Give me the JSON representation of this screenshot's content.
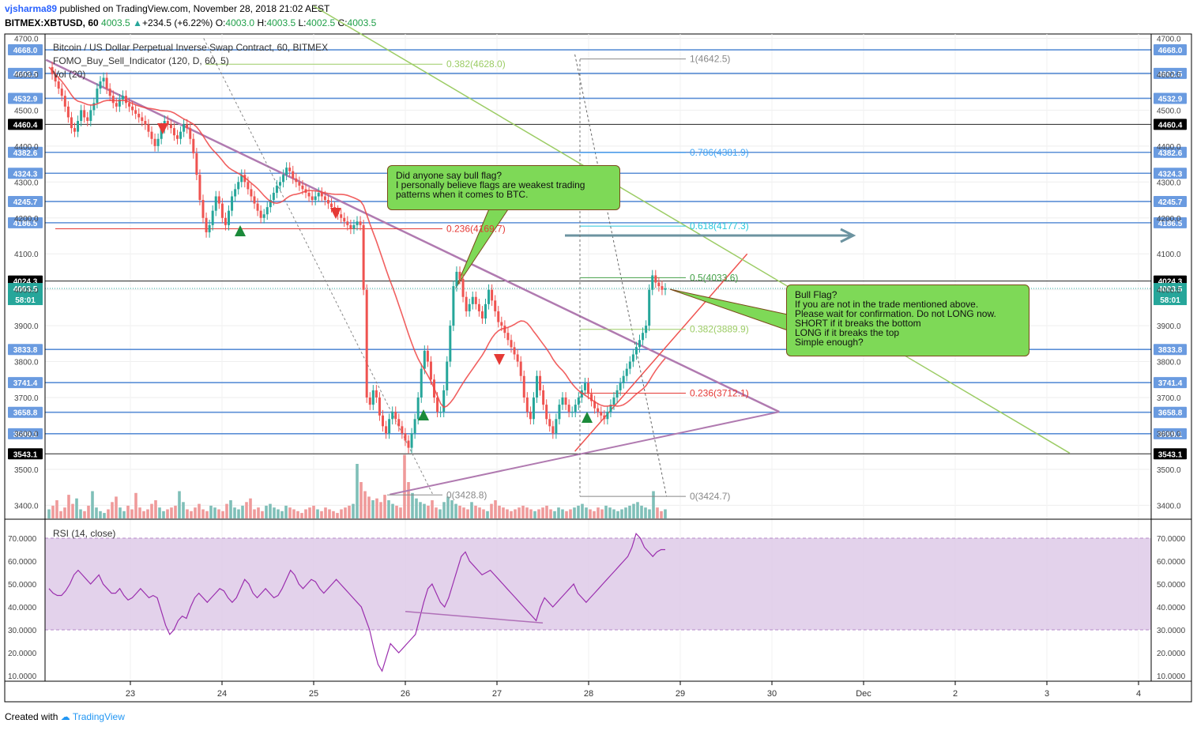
{
  "header": {
    "user": "vjsharma89",
    "published": " published on TradingView.com, November 28, 2018 21:02 AEST",
    "symbol": "BITMEX:XBTUSD, 60",
    "last": "4003.5",
    "change_arrow": "▲",
    "change": "+234.5 (+6.22%)",
    "o_label": "O:",
    "o_val": "4003.0",
    "h_label": "H:",
    "h_val": "4003.5",
    "l_label": "L:",
    "l_val": "4002.5",
    "c_label": "C:",
    "c_val": "4003.5"
  },
  "legend": {
    "title": "Bitcoin / US Dollar Perpetual Inverse Swap Contract, 60, BITMEX",
    "indicator": "FOMO_Buy_Sell_Indicator (120, D, 60, 5)",
    "volume": "Vol (20)",
    "rsi": "RSI (14, close)"
  },
  "footer": {
    "created_with": "Created with",
    "brand": "TradingView"
  },
  "annotations": {
    "bubble1": [
      "Did anyone say bull flag?",
      "I personally believe flags are weakest trading",
      "patterns when it comes to BTC."
    ],
    "bubble2": [
      "Bull Flag?",
      "If you are not in the trade mentioned above.",
      "Please wait for confirmation. Do not LONG now.",
      "SHORT if it breaks the bottom",
      "LONG if it breaks the top",
      "Simple enough?"
    ]
  },
  "colors": {
    "level": "#5b8fd6",
    "up": "#26a69a",
    "down": "#ef5350",
    "ema": "#ef4444",
    "green": "#4ade80",
    "triangle": "#b07ab0",
    "rsi": "#9b2fae",
    "rsi_band": "#dcc7e6",
    "bubble": "#7ed957"
  },
  "chart_data": {
    "type": "candlestick",
    "y_axis_ticks": [
      "4700.0",
      "4600.0",
      "4500.0",
      "4400.0",
      "4300.0",
      "4200.0",
      "4100.0",
      "4000.0",
      "3900.0",
      "3800.0",
      "3700.0",
      "3600.0",
      "3500.0",
      "3400.0"
    ],
    "x_axis_ticks": [
      "23",
      "24",
      "25",
      "26",
      "27",
      "28",
      "29",
      "30",
      "Dec",
      "2",
      "3",
      "4"
    ],
    "horizontal_levels": [
      {
        "label": "4668.0",
        "value": 4668.0,
        "style": "blue"
      },
      {
        "label": "4602.5",
        "value": 4602.5,
        "style": "blue"
      },
      {
        "label": "4532.9",
        "value": 4532.9,
        "style": "blue"
      },
      {
        "label": "4460.4",
        "value": 4460.4,
        "style": "black"
      },
      {
        "label": "4382.6",
        "value": 4382.6,
        "style": "blue"
      },
      {
        "label": "4324.3",
        "value": 4324.3,
        "style": "blue"
      },
      {
        "label": "4245.7",
        "value": 4245.7,
        "style": "blue"
      },
      {
        "label": "4186.5",
        "value": 4186.5,
        "style": "blue"
      },
      {
        "label": "4024.3",
        "value": 4024.3,
        "style": "black"
      },
      {
        "label": "3833.8",
        "value": 3833.8,
        "style": "blue"
      },
      {
        "label": "3741.4",
        "value": 3741.4,
        "style": "blue"
      },
      {
        "label": "3658.8",
        "value": 3658.8,
        "style": "blue"
      },
      {
        "label": "3599.1",
        "value": 3599.1,
        "style": "blue"
      },
      {
        "label": "3543.1",
        "value": 3543.1,
        "style": "black"
      }
    ],
    "current_price": {
      "label": "4003.5",
      "value": 4003.5,
      "countdown": "58:01"
    },
    "fib_left": [
      {
        "label": "0.382(4628.0)",
        "value": 4628.0,
        "color": "#9ccc65"
      },
      {
        "label": "0.236(4169.7)",
        "value": 4169.7,
        "color": "#e53935"
      },
      {
        "label": "0(3428.8)",
        "value": 3428.8,
        "color": "#888888"
      }
    ],
    "fib_right": [
      {
        "label": "1(4642.5)",
        "value": 4642.5,
        "color": "#888888"
      },
      {
        "label": "0.786(4381.9)",
        "value": 4381.9,
        "color": "#42a5f5"
      },
      {
        "label": "0.618(4177.3)",
        "value": 4177.3,
        "color": "#26c6da"
      },
      {
        "label": "0.5(4033.6)",
        "value": 4033.6,
        "color": "#43a047"
      },
      {
        "label": "0.382(3889.9)",
        "value": 3889.9,
        "color": "#9ccc65"
      },
      {
        "label": "0.236(3712.1)",
        "value": 3712.1,
        "color": "#e53935"
      },
      {
        "label": "0(3424.7)",
        "value": 3424.7,
        "color": "#888888"
      }
    ],
    "price_series_hourly": [
      4620,
      4600,
      4580,
      4560,
      4540,
      4510,
      4480,
      4450,
      4440,
      4470,
      4500,
      4480,
      4470,
      4500,
      4520,
      4560,
      4580,
      4590,
      4560,
      4540,
      4520,
      4510,
      4530,
      4540,
      4520,
      4510,
      4500,
      4490,
      4480,
      4470,
      4460,
      4440,
      4420,
      4400,
      4420,
      4450,
      4470,
      4460,
      4450,
      4430,
      4420,
      4440,
      4460,
      4450,
      4420,
      4380,
      4320,
      4250,
      4200,
      4160,
      4180,
      4220,
      4260,
      4240,
      4200,
      4180,
      4220,
      4260,
      4280,
      4300,
      4320,
      4300,
      4280,
      4260,
      4240,
      4220,
      4200,
      4210,
      4230,
      4250,
      4270,
      4290,
      4300,
      4320,
      4340,
      4330,
      4310,
      4300,
      4290,
      4280,
      4270,
      4260,
      4250,
      4260,
      4270,
      4260,
      4250,
      4240,
      4230,
      4220,
      4210,
      4200,
      4190,
      4180,
      4170,
      4180,
      4190,
      4180,
      4000,
      3700,
      3680,
      3720,
      3700,
      3650,
      3620,
      3600,
      3640,
      3660,
      3640,
      3620,
      3600,
      3580,
      3560,
      3600,
      3640,
      3700,
      3780,
      3830,
      3800,
      3750,
      3700,
      3660,
      3660,
      3720,
      3800,
      3900,
      4010,
      4050,
      4030,
      3980,
      3940,
      3960,
      3980,
      3960,
      3940,
      3920,
      3960,
      4000,
      3970,
      3940,
      3910,
      3900,
      3880,
      3860,
      3840,
      3820,
      3800,
      3760,
      3700,
      3660,
      3640,
      3700,
      3760,
      3720,
      3680,
      3640,
      3620,
      3600,
      3640,
      3680,
      3700,
      3680,
      3660,
      3660,
      3680,
      3700,
      3720,
      3740,
      3710,
      3690,
      3670,
      3660,
      3650,
      3640,
      3660,
      3680,
      3700,
      3720,
      3740,
      3760,
      3780,
      3800,
      3820,
      3840,
      3860,
      3880,
      3900,
      4000,
      4040,
      4020,
      4010,
      4000,
      4003.5
    ],
    "rsi": {
      "ticks": [
        "70.0000",
        "60.0000",
        "50.0000",
        "40.0000",
        "30.0000",
        "20.0000",
        "10.0000"
      ],
      "band": [
        30,
        70
      ],
      "series_hourly": [
        48,
        46,
        45,
        45,
        47,
        50,
        54,
        56,
        54,
        52,
        50,
        52,
        54,
        50,
        48,
        46,
        46,
        48,
        45,
        43,
        44,
        46,
        48,
        46,
        44,
        45,
        44,
        38,
        32,
        28,
        30,
        34,
        36,
        35,
        40,
        44,
        46,
        44,
        42,
        44,
        46,
        48,
        47,
        44,
        42,
        44,
        48,
        52,
        50,
        46,
        44,
        46,
        48,
        46,
        44,
        45,
        48,
        52,
        56,
        54,
        50,
        48,
        50,
        52,
        51,
        48,
        46,
        48,
        50,
        52,
        50,
        48,
        46,
        44,
        42,
        40,
        35,
        30,
        22,
        15,
        12,
        18,
        24,
        22,
        20,
        22,
        24,
        26,
        28,
        35,
        42,
        48,
        50,
        46,
        42,
        40,
        44,
        50,
        56,
        62,
        64,
        60,
        58,
        56,
        54,
        55,
        56,
        54,
        52,
        50,
        48,
        46,
        44,
        42,
        40,
        38,
        36,
        34,
        40,
        44,
        42,
        40,
        42,
        44,
        46,
        48,
        50,
        46,
        44,
        42,
        44,
        46,
        48,
        50,
        52,
        54,
        56,
        58,
        60,
        62,
        66,
        72,
        70,
        66,
        64,
        62,
        64,
        65,
        65
      ],
      "divergence_line": {
        "from": [
          26.0,
          38
        ],
        "to": [
          27.5,
          33
        ]
      }
    },
    "volume_hourly": [
      10,
      14,
      20,
      8,
      12,
      26,
      16,
      22,
      10,
      8,
      14,
      30,
      12,
      8,
      6,
      10,
      18,
      24,
      12,
      8,
      14,
      10,
      28,
      12,
      8,
      10,
      16,
      20,
      12,
      8,
      10,
      12,
      14,
      30,
      18,
      10,
      8,
      12,
      16,
      10,
      8,
      14,
      12,
      10,
      8,
      16,
      20,
      12,
      10,
      14,
      18,
      22,
      10,
      12,
      8,
      14,
      16,
      12,
      10,
      8,
      14,
      12,
      10,
      8,
      6,
      10,
      12,
      14,
      10,
      8,
      12,
      10,
      8,
      6,
      10,
      12,
      14,
      16,
      60,
      40,
      30,
      24,
      20,
      22,
      18,
      26,
      20,
      16,
      14,
      12,
      70,
      40,
      28,
      22,
      18,
      16,
      14,
      20,
      12,
      10,
      18,
      24,
      20,
      16,
      14,
      12,
      10,
      18,
      14,
      12,
      10,
      8,
      16,
      20,
      14,
      12,
      10,
      8,
      10,
      12,
      14,
      12,
      10,
      8,
      10,
      12,
      14,
      10,
      8,
      12,
      10,
      8,
      10,
      12,
      14,
      16,
      12,
      10,
      8,
      12,
      10,
      14,
      12,
      10,
      8,
      10,
      12,
      14,
      16,
      18,
      14,
      12,
      10,
      30,
      12,
      8,
      10
    ]
  }
}
